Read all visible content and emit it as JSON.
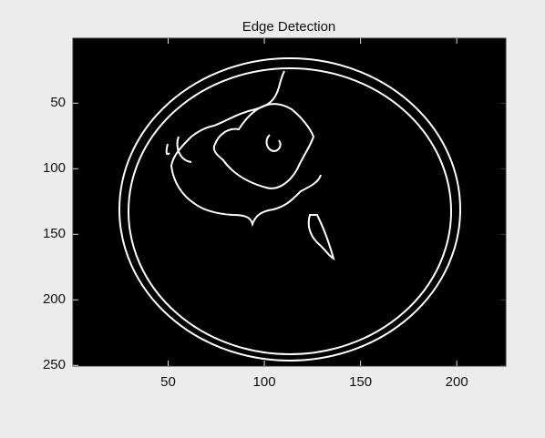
{
  "chart_data": {
    "type": "image",
    "title": "Edge Detection",
    "xlim": [
      0.5,
      225.5
    ],
    "xticks": [
      50,
      100,
      150,
      200
    ],
    "ylim": [
      0.5,
      250.5
    ],
    "yticks": [
      50,
      100,
      150,
      200,
      250
    ],
    "y_reversed": true
  }
}
